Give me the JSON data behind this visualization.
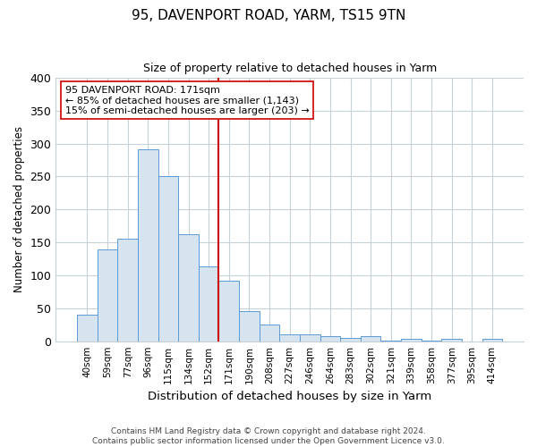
{
  "title": "95, DAVENPORT ROAD, YARM, TS15 9TN",
  "subtitle": "Size of property relative to detached houses in Yarm",
  "xlabel": "Distribution of detached houses by size in Yarm",
  "ylabel": "Number of detached properties",
  "bar_labels": [
    "40sqm",
    "59sqm",
    "77sqm",
    "96sqm",
    "115sqm",
    "134sqm",
    "152sqm",
    "171sqm",
    "190sqm",
    "208sqm",
    "227sqm",
    "246sqm",
    "264sqm",
    "283sqm",
    "302sqm",
    "321sqm",
    "339sqm",
    "358sqm",
    "377sqm",
    "395sqm",
    "414sqm"
  ],
  "bar_values": [
    40,
    140,
    155,
    292,
    251,
    162,
    114,
    92,
    46,
    25,
    10,
    11,
    8,
    5,
    8,
    1,
    3,
    1,
    3,
    0,
    3
  ],
  "bar_color": "#d6e4f0",
  "bar_edge_color": "#5b9bd5",
  "highlight_index": 7,
  "highlight_line_color": "#cc0000",
  "annotation_line1": "95 DAVENPORT ROAD: 171sqm",
  "annotation_line2": "← 85% of detached houses are smaller (1,143)",
  "annotation_line3": "15% of semi-detached houses are larger (203) →",
  "annotation_box_color": "#ffffff",
  "annotation_box_edge": "#cc0000",
  "ylim": [
    0,
    400
  ],
  "yticks": [
    0,
    50,
    100,
    150,
    200,
    250,
    300,
    350,
    400
  ],
  "grid_color": "#c8d0d8",
  "footer": "Contains HM Land Registry data © Crown copyright and database right 2024.\nContains public sector information licensed under the Open Government Licence v3.0.",
  "fig_width": 6.0,
  "fig_height": 5.0,
  "background_color": "#ffffff",
  "title_fontsize": 11,
  "subtitle_fontsize": 9
}
